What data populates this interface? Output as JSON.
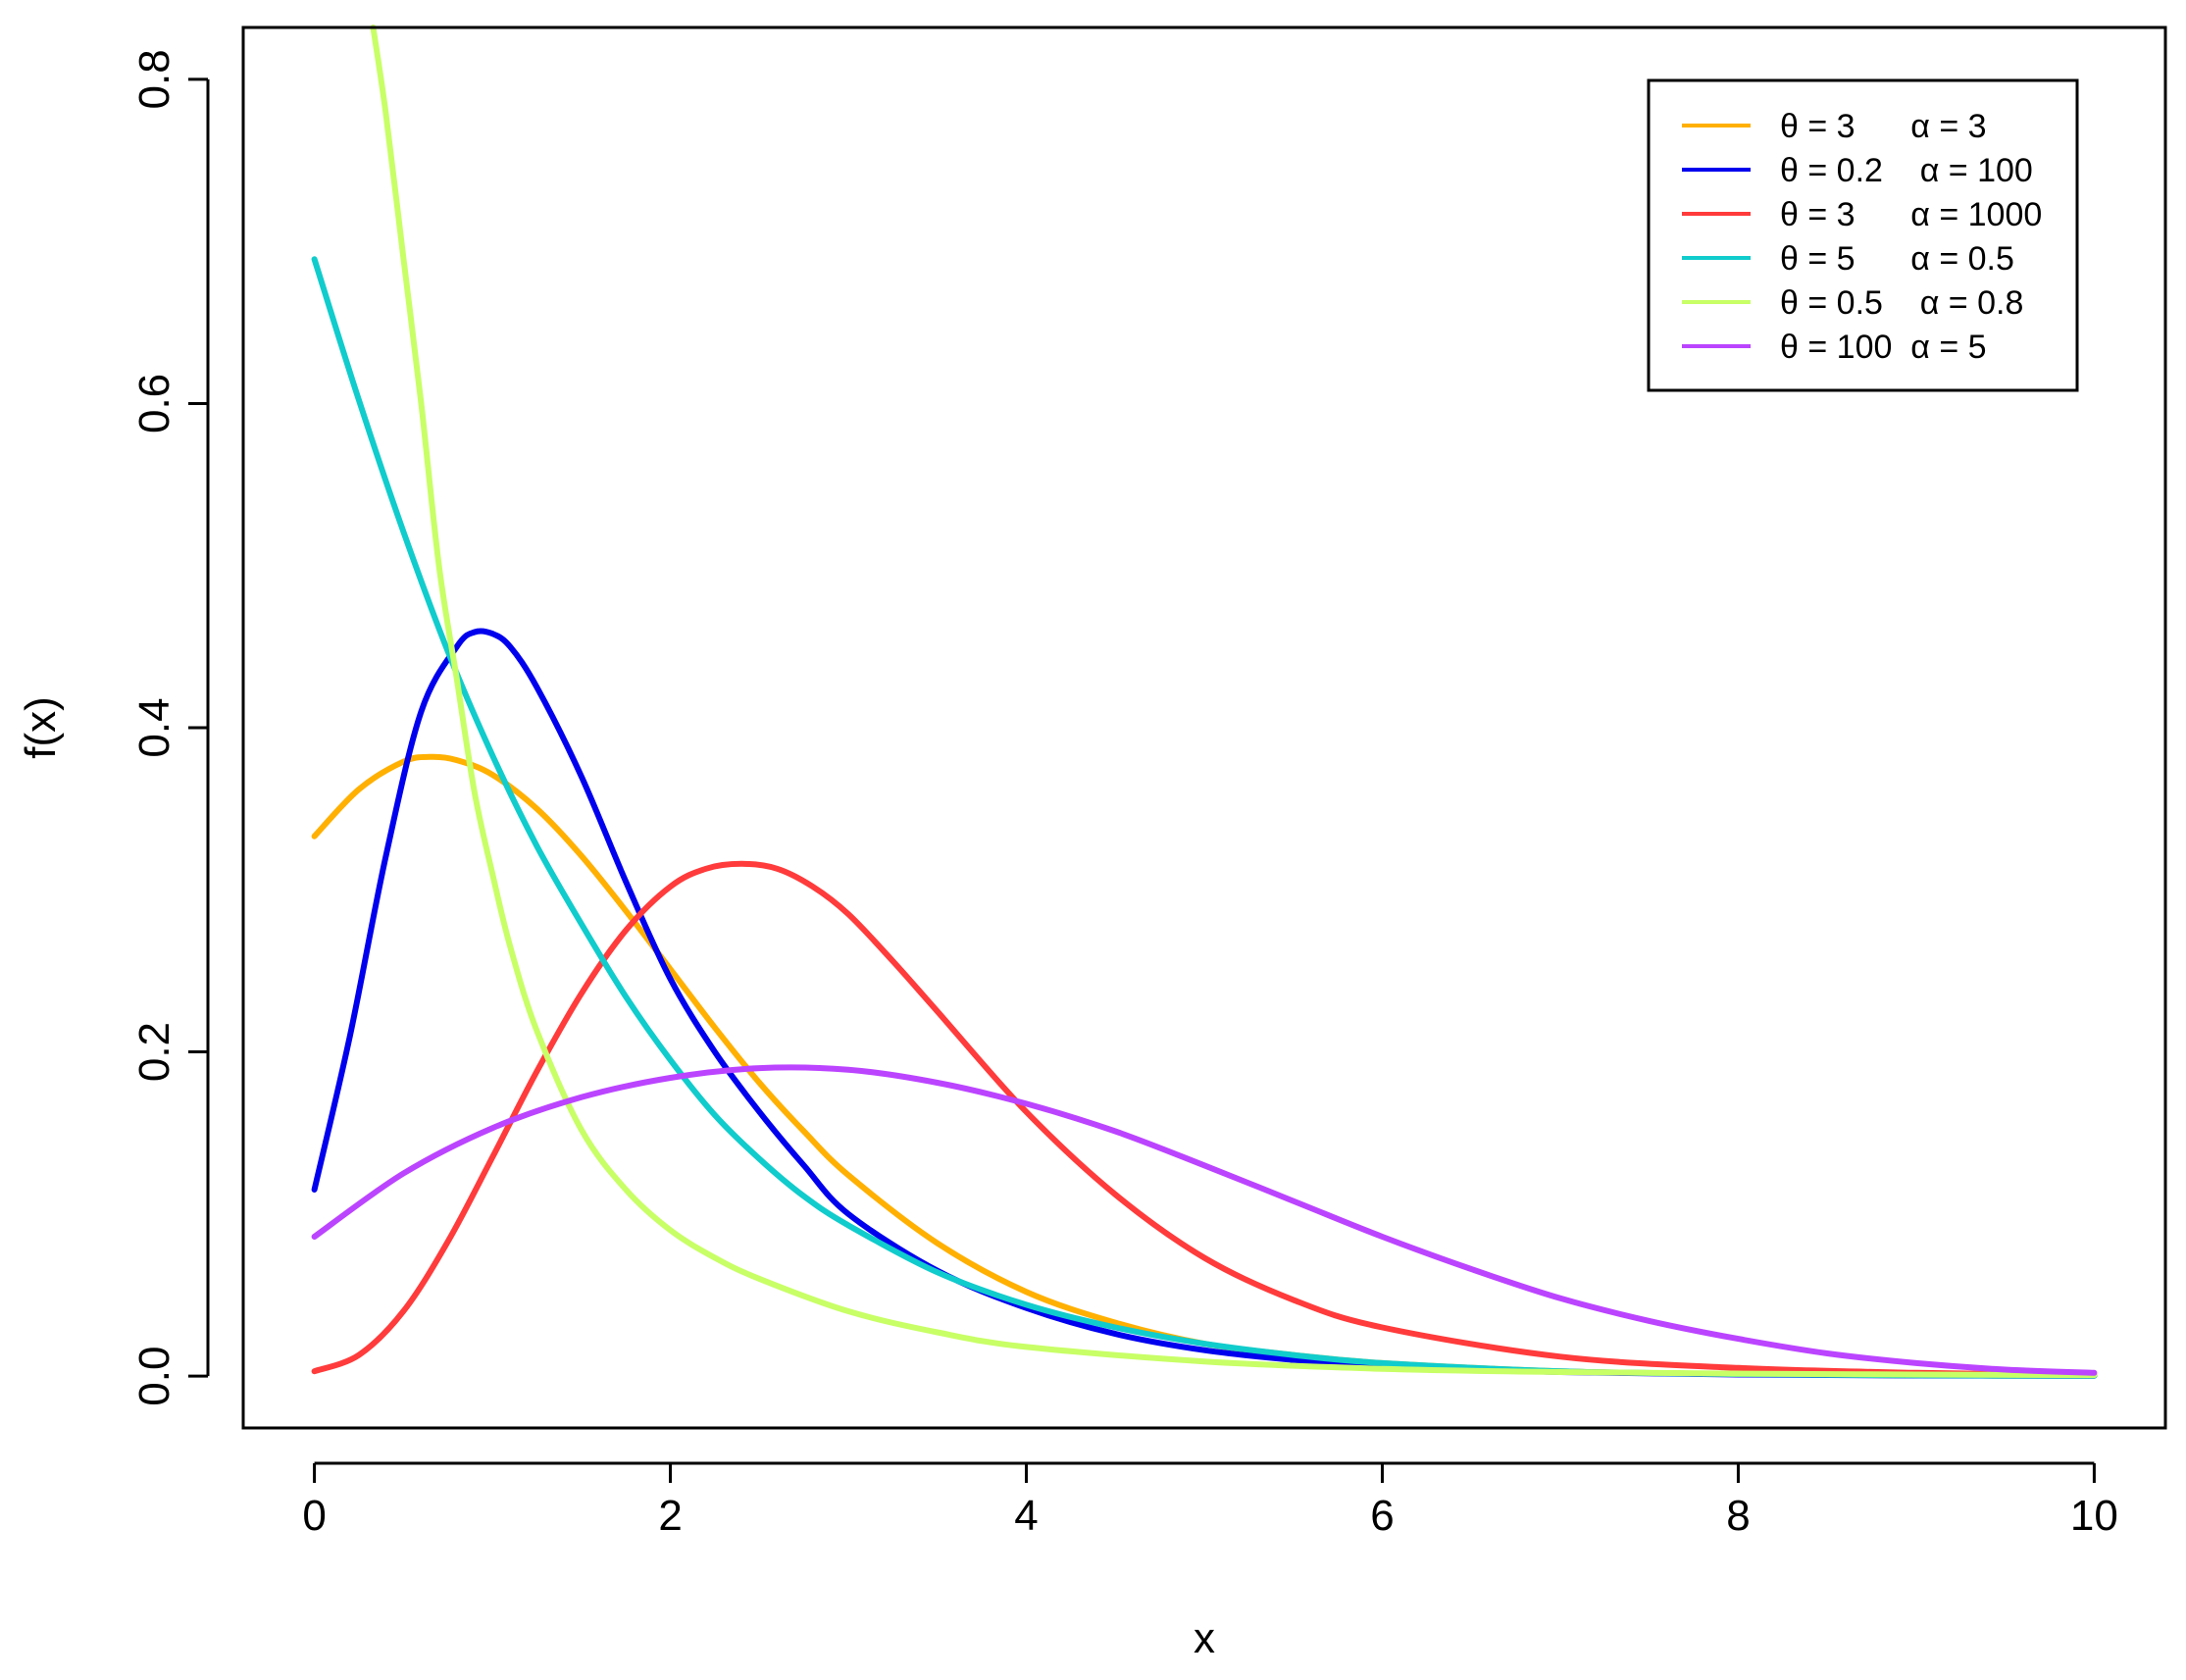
{
  "chart_data": {
    "type": "line",
    "xlabel": "x",
    "ylabel": "f(x)",
    "xlim": [
      -0.4,
      10.4
    ],
    "ylim": [
      -0.032,
      0.832
    ],
    "x_ticks": [
      "0",
      "2",
      "4",
      "6",
      "8",
      "10"
    ],
    "y_ticks": [
      "0.0",
      "0.2",
      "0.4",
      "0.6",
      "0.8"
    ],
    "legend_position": "top-right",
    "grid": false,
    "series": [
      {
        "name": "θ = 3      α = 3",
        "color": "#FFB000",
        "x": [
          0,
          0.25,
          0.5,
          0.65,
          0.8,
          1,
          1.25,
          1.5,
          1.75,
          2,
          2.25,
          2.5,
          2.75,
          3,
          3.5,
          4,
          4.5,
          5,
          5.5,
          6,
          7,
          8,
          9,
          10
        ],
        "y": [
          0.333,
          0.362,
          0.379,
          0.382,
          0.38,
          0.371,
          0.35,
          0.321,
          0.287,
          0.251,
          0.215,
          0.181,
          0.151,
          0.124,
          0.082,
          0.052,
          0.033,
          0.02,
          0.013,
          0.008,
          0.003,
          0.0012,
          0.0005,
          0.0002
        ]
      },
      {
        "name": "θ = 0.2    α = 100",
        "color": "#0000EE",
        "x": [
          0,
          0.2,
          0.4,
          0.6,
          0.8,
          0.9,
          1,
          1.1,
          1.25,
          1.5,
          1.75,
          2,
          2.25,
          2.5,
          2.75,
          3,
          3.5,
          4,
          4.5,
          5,
          5.5,
          6,
          7,
          8,
          9,
          10
        ],
        "y": [
          0.115,
          0.21,
          0.32,
          0.41,
          0.45,
          0.459,
          0.458,
          0.45,
          0.425,
          0.37,
          0.305,
          0.245,
          0.2,
          0.163,
          0.13,
          0.1,
          0.065,
          0.042,
          0.026,
          0.016,
          0.01,
          0.006,
          0.0025,
          0.001,
          0.0004,
          0.0002
        ]
      },
      {
        "name": "θ = 3      α = 1000",
        "color": "#FF3B3B",
        "x": [
          0,
          0.25,
          0.5,
          0.75,
          1,
          1.25,
          1.5,
          1.75,
          2,
          2.2,
          2.4,
          2.6,
          2.8,
          3,
          3.25,
          3.5,
          4,
          4.5,
          5,
          5.5,
          6,
          7,
          8,
          9,
          10
        ],
        "y": [
          0.003,
          0.013,
          0.04,
          0.083,
          0.135,
          0.188,
          0.236,
          0.275,
          0.302,
          0.313,
          0.316,
          0.313,
          0.302,
          0.285,
          0.256,
          0.225,
          0.163,
          0.112,
          0.073,
          0.047,
          0.03,
          0.012,
          0.005,
          0.002,
          0.0008
        ]
      },
      {
        "name": "θ = 5      α = 0.5",
        "color": "#11CCCC",
        "x": [
          0,
          0.25,
          0.5,
          0.75,
          1,
          1.25,
          1.5,
          1.75,
          2,
          2.25,
          2.5,
          2.75,
          3,
          3.5,
          4,
          4.5,
          5,
          5.5,
          6,
          7,
          8,
          9,
          10
        ],
        "y": [
          0.689,
          0.602,
          0.521,
          0.447,
          0.383,
          0.327,
          0.279,
          0.234,
          0.195,
          0.161,
          0.134,
          0.111,
          0.093,
          0.064,
          0.044,
          0.03,
          0.02,
          0.013,
          0.008,
          0.003,
          0.0013,
          0.0005,
          0.0002
        ]
      },
      {
        "name": "θ = 0.5    α = 0.8",
        "color": "#C8FF66",
        "x": [
          0.33,
          0.4,
          0.5,
          0.6,
          0.7,
          0.8,
          0.9,
          1,
          1.1,
          1.25,
          1.5,
          1.75,
          2,
          2.25,
          2.5,
          3,
          3.5,
          4,
          5,
          6,
          7,
          8,
          9,
          10
        ],
        "y": [
          0.832,
          0.78,
          0.69,
          0.6,
          0.5,
          0.43,
          0.36,
          0.31,
          0.265,
          0.213,
          0.152,
          0.115,
          0.09,
          0.073,
          0.06,
          0.04,
          0.027,
          0.018,
          0.009,
          0.0045,
          0.0025,
          0.0015,
          0.001,
          0.0006
        ]
      },
      {
        "name": "θ = 100  α = 5",
        "color": "#BB44FF",
        "x": [
          0,
          0.5,
          1,
          1.5,
          2,
          2.5,
          3,
          3.5,
          4,
          4.5,
          5,
          5.5,
          6,
          6.5,
          7,
          7.5,
          8,
          8.5,
          9,
          9.5,
          10
        ],
        "y": [
          0.086,
          0.125,
          0.153,
          0.172,
          0.184,
          0.19,
          0.189,
          0.181,
          0.168,
          0.151,
          0.13,
          0.108,
          0.086,
          0.066,
          0.048,
          0.034,
          0.023,
          0.014,
          0.008,
          0.004,
          0.002
        ]
      }
    ]
  }
}
